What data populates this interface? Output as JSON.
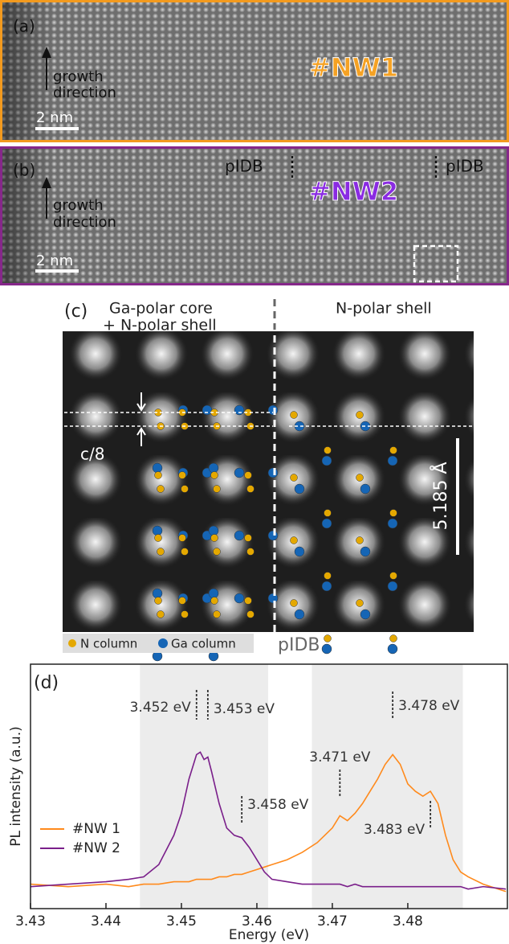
{
  "panels": {
    "a": {
      "label": "(a)",
      "growth_direction": [
        "growth",
        "direction"
      ],
      "scale": "2 nm",
      "name": "#NW1"
    },
    "b": {
      "label": "(b)",
      "growth_direction": [
        "growth",
        "direction"
      ],
      "scale": "2 nm",
      "name": "#NW2",
      "boundary_left": "pIDB",
      "boundary_right": "pIDB"
    },
    "c": {
      "label": "(c)",
      "left_title": [
        "Ga-polar core",
        "+ N-polar shell"
      ],
      "right_title": "N-polar shell",
      "spacing": "c/8",
      "scale": "5.185 Å",
      "legend": [
        "N column",
        "Ga column"
      ],
      "boundary": "pIDB"
    }
  },
  "chart_data": {
    "type": "line",
    "panel_label": "(d)",
    "x_label": "Energy (eV)",
    "y_label": "PL intensity (a.u.)",
    "xlim": [
      3.43,
      3.4932
    ],
    "ylim": [
      0,
      1
    ],
    "xticks": [
      3.43,
      3.44,
      3.45,
      3.46,
      3.47,
      3.48
    ],
    "legend": "left",
    "shaded_regions": [
      [
        3.4445,
        3.4615
      ],
      [
        3.4673,
        3.4873
      ]
    ],
    "x": [
      3.43,
      3.435,
      3.44,
      3.443,
      3.445,
      3.447,
      3.449,
      3.45,
      3.451,
      3.452,
      3.4525,
      3.453,
      3.4535,
      3.454,
      3.455,
      3.456,
      3.457,
      3.458,
      3.459,
      3.46,
      3.461,
      3.462,
      3.464,
      3.466,
      3.468,
      3.469,
      3.47,
      3.471,
      3.472,
      3.473,
      3.474,
      3.475,
      3.476,
      3.477,
      3.478,
      3.479,
      3.48,
      3.481,
      3.482,
      3.483,
      3.484,
      3.485,
      3.486,
      3.487,
      3.488,
      3.49,
      3.493
    ],
    "series": [
      {
        "name": "#NW 1",
        "color": "#ff8a1c",
        "values": [
          0.1,
          0.09,
          0.1,
          0.09,
          0.1,
          0.1,
          0.11,
          0.11,
          0.11,
          0.12,
          0.12,
          0.12,
          0.12,
          0.12,
          0.13,
          0.13,
          0.14,
          0.14,
          0.15,
          0.16,
          0.17,
          0.18,
          0.2,
          0.23,
          0.27,
          0.3,
          0.33,
          0.38,
          0.36,
          0.39,
          0.43,
          0.48,
          0.53,
          0.59,
          0.63,
          0.59,
          0.51,
          0.48,
          0.46,
          0.48,
          0.43,
          0.3,
          0.2,
          0.15,
          0.13,
          0.1,
          0.07
        ]
      },
      {
        "name": "#NW 2",
        "color": "#7a1f8a",
        "values": [
          0.09,
          0.1,
          0.11,
          0.12,
          0.13,
          0.18,
          0.3,
          0.39,
          0.53,
          0.63,
          0.64,
          0.61,
          0.62,
          0.56,
          0.43,
          0.33,
          0.3,
          0.29,
          0.25,
          0.2,
          0.15,
          0.12,
          0.11,
          0.1,
          0.1,
          0.1,
          0.1,
          0.1,
          0.09,
          0.1,
          0.09,
          0.09,
          0.09,
          0.09,
          0.09,
          0.09,
          0.09,
          0.09,
          0.09,
          0.09,
          0.09,
          0.09,
          0.09,
          0.09,
          0.08,
          0.09,
          0.08
        ]
      }
    ],
    "annotations": [
      {
        "text": "3.452 eV",
        "x": 3.452
      },
      {
        "text": "3.453 eV",
        "x": 3.4535
      },
      {
        "text": "3.458 eV",
        "x": 3.458
      },
      {
        "text": "3.471 eV",
        "x": 3.471
      },
      {
        "text": "3.478 eV",
        "x": 3.478
      },
      {
        "text": "3.483 eV",
        "x": 3.483
      }
    ]
  }
}
